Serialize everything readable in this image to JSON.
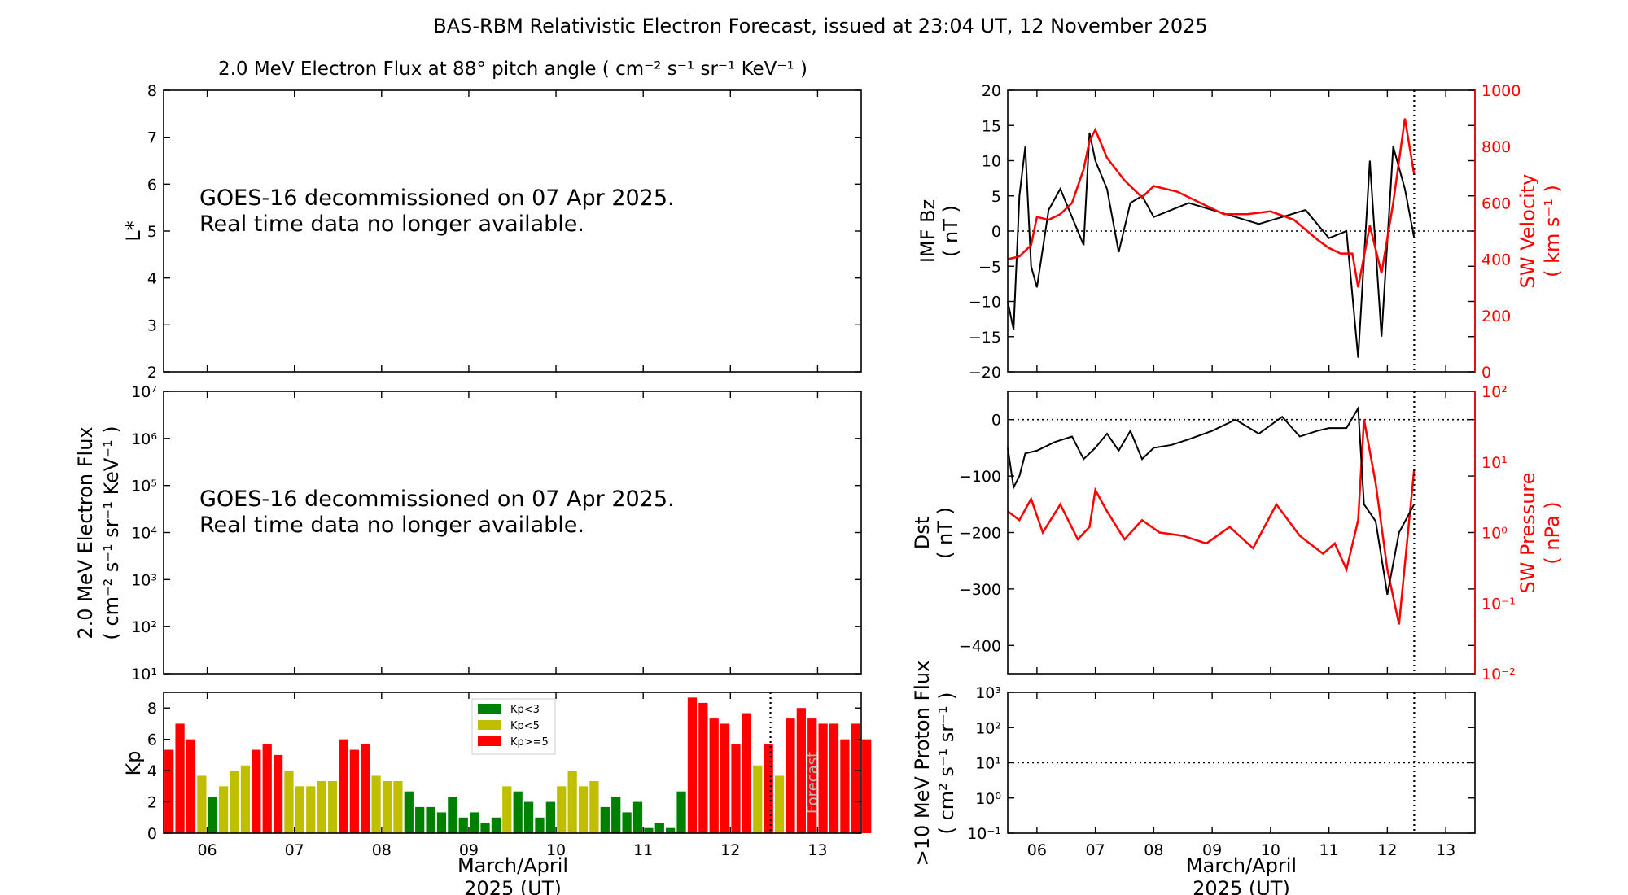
{
  "title": "BAS-RBM Relativistic Electron Forecast, issued at 23:04 UT, 12 November 2025",
  "panel_notice": {
    "line1": "GOES-16 decommissioned on 07 Apr 2025.",
    "line2": "Real time data no longer available."
  },
  "colors": {
    "black": "#000000",
    "red": "#ff0000",
    "green": "#008000",
    "olive": "#bfbf00"
  },
  "chart_data": [
    {
      "id": "lstar",
      "type": "heatmap",
      "title": "2.0 MeV Electron Flux at 88° pitch angle ( cm⁻² s⁻¹ sr⁻¹ KeV⁻¹ )",
      "ylabel": "L*",
      "ylim": [
        2,
        8
      ],
      "yticks": [
        "2",
        "3",
        "4",
        "5",
        "6",
        "7",
        "8"
      ],
      "message": [
        "GOES-16 decommissioned on 07 Apr 2025.",
        "Real time data no longer available."
      ]
    },
    {
      "id": "eflux",
      "type": "line",
      "ylabel": "2.0 MeV Electron Flux",
      "ylabel2": "( cm⁻² s⁻¹ sr⁻¹ KeV⁻¹ )",
      "yscale": "log",
      "ylim": [
        10,
        10000000
      ],
      "yticks": [
        "10¹",
        "10²",
        "10³",
        "10⁴",
        "10⁵",
        "10⁶",
        "10⁷"
      ],
      "message": [
        "GOES-16 decommissioned on 07 Apr 2025.",
        "Real time data no longer available."
      ]
    },
    {
      "id": "kp",
      "type": "bar",
      "ylabel": "Kp",
      "ylim": [
        0,
        9
      ],
      "yticks": [
        "0",
        "2",
        "4",
        "6",
        "8"
      ],
      "xlim": [
        5.5,
        13.5
      ],
      "xticks": [
        "06",
        "07",
        "08",
        "09",
        "10",
        "11",
        "12",
        "13"
      ],
      "xlabel": "March/April",
      "xlabel2": "2025 (UT)",
      "now": 12.46,
      "legend": [
        {
          "label": "Kp<3",
          "color": "#008000"
        },
        {
          "label": "Kp<5",
          "color": "#bfbf00"
        },
        {
          "label": "Kp>=5",
          "color": "#ff0000"
        }
      ],
      "forecast_label": "Forecast",
      "values": [
        5.33,
        7.0,
        6.0,
        3.67,
        2.33,
        3.0,
        4.0,
        4.33,
        5.33,
        5.67,
        5.0,
        4.0,
        3.0,
        3.0,
        3.33,
        3.33,
        6.0,
        5.33,
        5.67,
        3.67,
        3.33,
        3.33,
        2.67,
        1.67,
        1.67,
        1.33,
        2.33,
        1.0,
        1.33,
        0.67,
        1.0,
        3.0,
        2.67,
        2.0,
        1.0,
        2.0,
        3.0,
        4.0,
        3.0,
        3.33,
        1.67,
        2.33,
        1.33,
        2.0,
        0.33,
        0.67,
        0.33,
        2.67,
        8.67,
        8.33,
        7.33,
        7.0,
        5.67,
        7.67,
        4.33,
        5.67,
        3.67,
        7.33,
        8.0,
        7.33,
        7.0,
        7.0,
        6.0,
        7.0,
        6.0
      ]
    },
    {
      "id": "imf",
      "type": "line",
      "ylabel": "IMF Bz",
      "ylabel2": "( nT )",
      "ylim": [
        -20,
        20
      ],
      "yticks": [
        "−20",
        "−15",
        "−10",
        "−5",
        "0",
        "5",
        "10",
        "15",
        "20"
      ],
      "y2label": "SW Velocity",
      "y2label2": "( km s⁻¹ )",
      "y2lim": [
        0,
        1000
      ],
      "y2ticks": [
        "0",
        "200",
        "400",
        "600",
        "800",
        "1000"
      ],
      "xlim": [
        5.5,
        13.5
      ],
      "now": 12.46,
      "series": [
        {
          "name": "IMF Bz",
          "color": "#000000",
          "x": [
            5.5,
            5.6,
            5.7,
            5.8,
            5.9,
            6.0,
            6.2,
            6.4,
            6.6,
            6.8,
            6.9,
            7.0,
            7.2,
            7.4,
            7.6,
            7.8,
            8.0,
            8.3,
            8.6,
            9.0,
            9.4,
            9.8,
            10.2,
            10.6,
            11.0,
            11.3,
            11.5,
            11.7,
            11.9,
            12.1,
            12.3,
            12.46
          ],
          "y": [
            -10,
            -14,
            5,
            12,
            -5,
            -8,
            3,
            6,
            2,
            -2,
            14,
            10,
            6,
            -3,
            4,
            5,
            2,
            3,
            4,
            3,
            2,
            1,
            2,
            3,
            -1,
            0,
            -18,
            10,
            -15,
            12,
            6,
            -1
          ]
        },
        {
          "name": "SW Velocity",
          "color": "#ff0000",
          "x": [
            5.5,
            5.7,
            5.9,
            6.0,
            6.2,
            6.4,
            6.6,
            6.8,
            6.9,
            7.0,
            7.2,
            7.5,
            7.8,
            8.0,
            8.4,
            8.8,
            9.2,
            9.6,
            10.0,
            10.4,
            10.8,
            11.0,
            11.2,
            11.4,
            11.5,
            11.7,
            11.9,
            12.1,
            12.3,
            12.46
          ],
          "y": [
            400,
            410,
            450,
            550,
            540,
            560,
            600,
            720,
            820,
            860,
            760,
            680,
            620,
            660,
            640,
            600,
            560,
            560,
            570,
            540,
            470,
            440,
            420,
            420,
            300,
            520,
            350,
            600,
            900,
            700
          ]
        }
      ]
    },
    {
      "id": "dst",
      "type": "line",
      "ylabel": "Dst",
      "ylabel2": "( nT )",
      "ylim": [
        -450,
        50
      ],
      "yticks": [
        "−400",
        "−300",
        "−200",
        "−100",
        "0"
      ],
      "y2label": "SW Pressure",
      "y2label2": "( nPa )",
      "y2scale": "log",
      "y2lim": [
        0.01,
        100
      ],
      "y2ticks": [
        "10⁻²",
        "10⁻¹",
        "10⁰",
        "10¹",
        "10²"
      ],
      "xlim": [
        5.5,
        13.5
      ],
      "now": 12.46,
      "series": [
        {
          "name": "Dst",
          "color": "#000000",
          "x": [
            5.5,
            5.6,
            5.7,
            5.8,
            6.0,
            6.3,
            6.6,
            6.8,
            6.9,
            7.0,
            7.2,
            7.4,
            7.6,
            7.8,
            8.0,
            8.3,
            8.6,
            9.0,
            9.4,
            9.8,
            10.2,
            10.5,
            10.8,
            11.0,
            11.3,
            11.5,
            11.6,
            11.8,
            12.0,
            12.2,
            12.46
          ],
          "y": [
            -50,
            -120,
            -100,
            -60,
            -55,
            -40,
            -30,
            -70,
            -60,
            -50,
            -25,
            -55,
            -20,
            -70,
            -50,
            -45,
            -35,
            -20,
            0,
            -25,
            5,
            -30,
            -20,
            -15,
            -15,
            20,
            -150,
            -180,
            -310,
            -200,
            -150
          ]
        },
        {
          "name": "SW Pressure",
          "color": "#ff0000",
          "x": [
            5.5,
            5.7,
            5.9,
            6.1,
            6.4,
            6.7,
            6.9,
            7.0,
            7.2,
            7.5,
            7.8,
            8.1,
            8.5,
            8.9,
            9.3,
            9.7,
            10.1,
            10.5,
            10.9,
            11.1,
            11.3,
            11.5,
            11.6,
            11.8,
            12.0,
            12.2,
            12.46
          ],
          "y": [
            2,
            1.5,
            3,
            1,
            2.5,
            0.8,
            1.2,
            4,
            2,
            0.8,
            1.5,
            1,
            0.9,
            0.7,
            1.2,
            0.6,
            2.5,
            0.9,
            0.5,
            0.7,
            0.3,
            1.5,
            40,
            5,
            0.3,
            0.05,
            8
          ]
        }
      ]
    },
    {
      "id": "proton",
      "type": "line",
      "ylabel": ">10 MeV Proton Flux",
      "ylabel2": "( cm² s⁻¹ sr⁻¹ )",
      "yscale": "log",
      "ylim": [
        0.1,
        1000
      ],
      "yticks": [
        "10⁻¹",
        "10⁰",
        "10¹",
        "10²",
        "10³"
      ],
      "threshold": 10,
      "xlim": [
        5.5,
        13.5
      ],
      "xticks": [
        "06",
        "07",
        "08",
        "09",
        "10",
        "11",
        "12",
        "13"
      ],
      "xlabel": "March/April",
      "xlabel2": "2025 (UT)",
      "now": 12.46
    }
  ]
}
